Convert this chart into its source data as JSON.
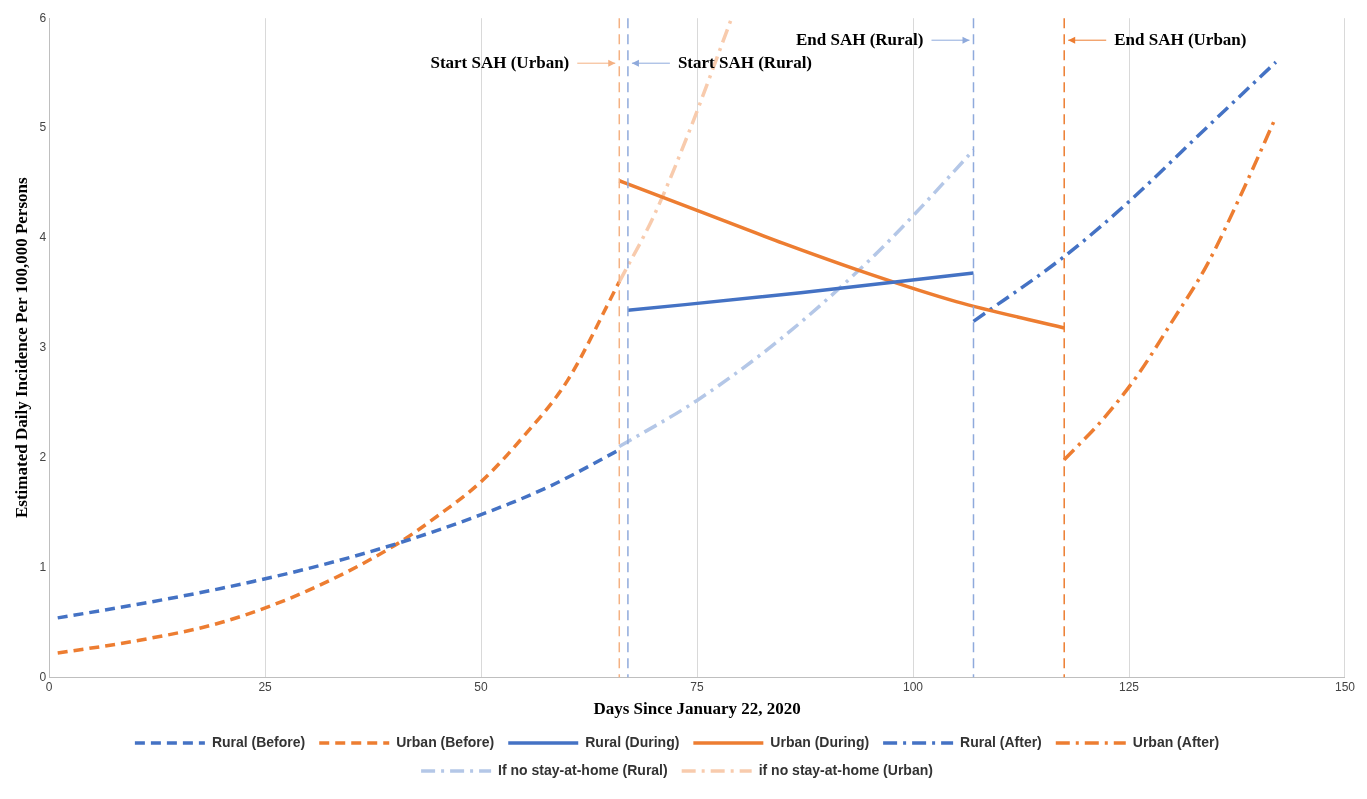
{
  "chart_data": {
    "type": "line",
    "xlabel": "Days Since January 22, 2020",
    "ylabel": "Estimated Daily Incidence Per 100,000 Persons",
    "xlim": [
      0,
      150
    ],
    "xticks": [
      0,
      25,
      50,
      75,
      100,
      125,
      150
    ],
    "ylim": [
      0,
      6
    ],
    "yticks": [
      0,
      1,
      2,
      3,
      4,
      5,
      6
    ],
    "grid": "x",
    "legend": "bottom",
    "marker": "none",
    "series": [
      {
        "name": "Rural (Before)",
        "color": "#4472c4",
        "line_style": "dashed",
        "x": [
          1,
          10,
          20,
          30,
          40,
          50,
          58,
          66
        ],
        "values": [
          0.54,
          0.66,
          0.81,
          0.99,
          1.21,
          1.48,
          1.74,
          2.07
        ]
      },
      {
        "name": "Urban (Before)",
        "color": "#ed7d31",
        "line_style": "dashed",
        "x": [
          1,
          10,
          20,
          30,
          40,
          45,
          50,
          55,
          60,
          66
        ],
        "values": [
          0.22,
          0.33,
          0.5,
          0.79,
          1.2,
          1.47,
          1.78,
          2.2,
          2.7,
          3.6
        ]
      },
      {
        "name": "Rural (During)",
        "color": "#4472c4",
        "line_style": "solid",
        "x": [
          67,
          87,
          107
        ],
        "values": [
          3.34,
          3.5,
          3.68
        ]
      },
      {
        "name": "Urban (During)",
        "color": "#ed7d31",
        "line_style": "solid",
        "x": [
          66,
          75,
          85,
          95,
          105,
          117.5
        ],
        "values": [
          4.52,
          4.25,
          3.95,
          3.67,
          3.42,
          3.18
        ]
      },
      {
        "name": "Rural (After)",
        "color": "#4472c4",
        "line_style": "dashdot",
        "x": [
          107,
          117.5,
          125,
          133,
          142
        ],
        "values": [
          3.24,
          3.83,
          4.33,
          4.93,
          5.6
        ]
      },
      {
        "name": "Urban (After)",
        "color": "#ed7d31",
        "line_style": "dashdot",
        "x": [
          117.5,
          122,
          126,
          130,
          134,
          138,
          142
        ],
        "values": [
          1.98,
          2.35,
          2.75,
          3.24,
          3.75,
          4.4,
          5.1
        ]
      },
      {
        "name": "If no stay-at-home (Rural)",
        "color": "#b4c7e7",
        "line_style": "dashdot",
        "x": [
          66,
          75,
          85,
          95,
          100,
          107
        ],
        "values": [
          2.1,
          2.52,
          3.1,
          3.8,
          4.2,
          4.8
        ]
      },
      {
        "name": "if no stay-at-home (Urban)",
        "color": "#f8cbad",
        "line_style": "dashdot",
        "x": [
          66,
          70,
          74,
          79
        ],
        "values": [
          3.6,
          4.2,
          4.95,
          6.0
        ]
      }
    ],
    "ref_lines": [
      {
        "axis": "x",
        "value": 66,
        "label": "Start SAH (Urban)",
        "color": "#f4b183",
        "line_style": "dashed"
      },
      {
        "axis": "x",
        "value": 67,
        "label": "Start SAH (Rural)",
        "color": "#8faadc",
        "line_style": "dashed"
      },
      {
        "axis": "x",
        "value": 107,
        "label": "End SAH (Rural)",
        "color": "#8faadc",
        "line_style": "dashed"
      },
      {
        "axis": "x",
        "value": 117.5,
        "label": "End SAH (Urban)",
        "color": "#ed7d31",
        "line_style": "dashed"
      }
    ]
  }
}
